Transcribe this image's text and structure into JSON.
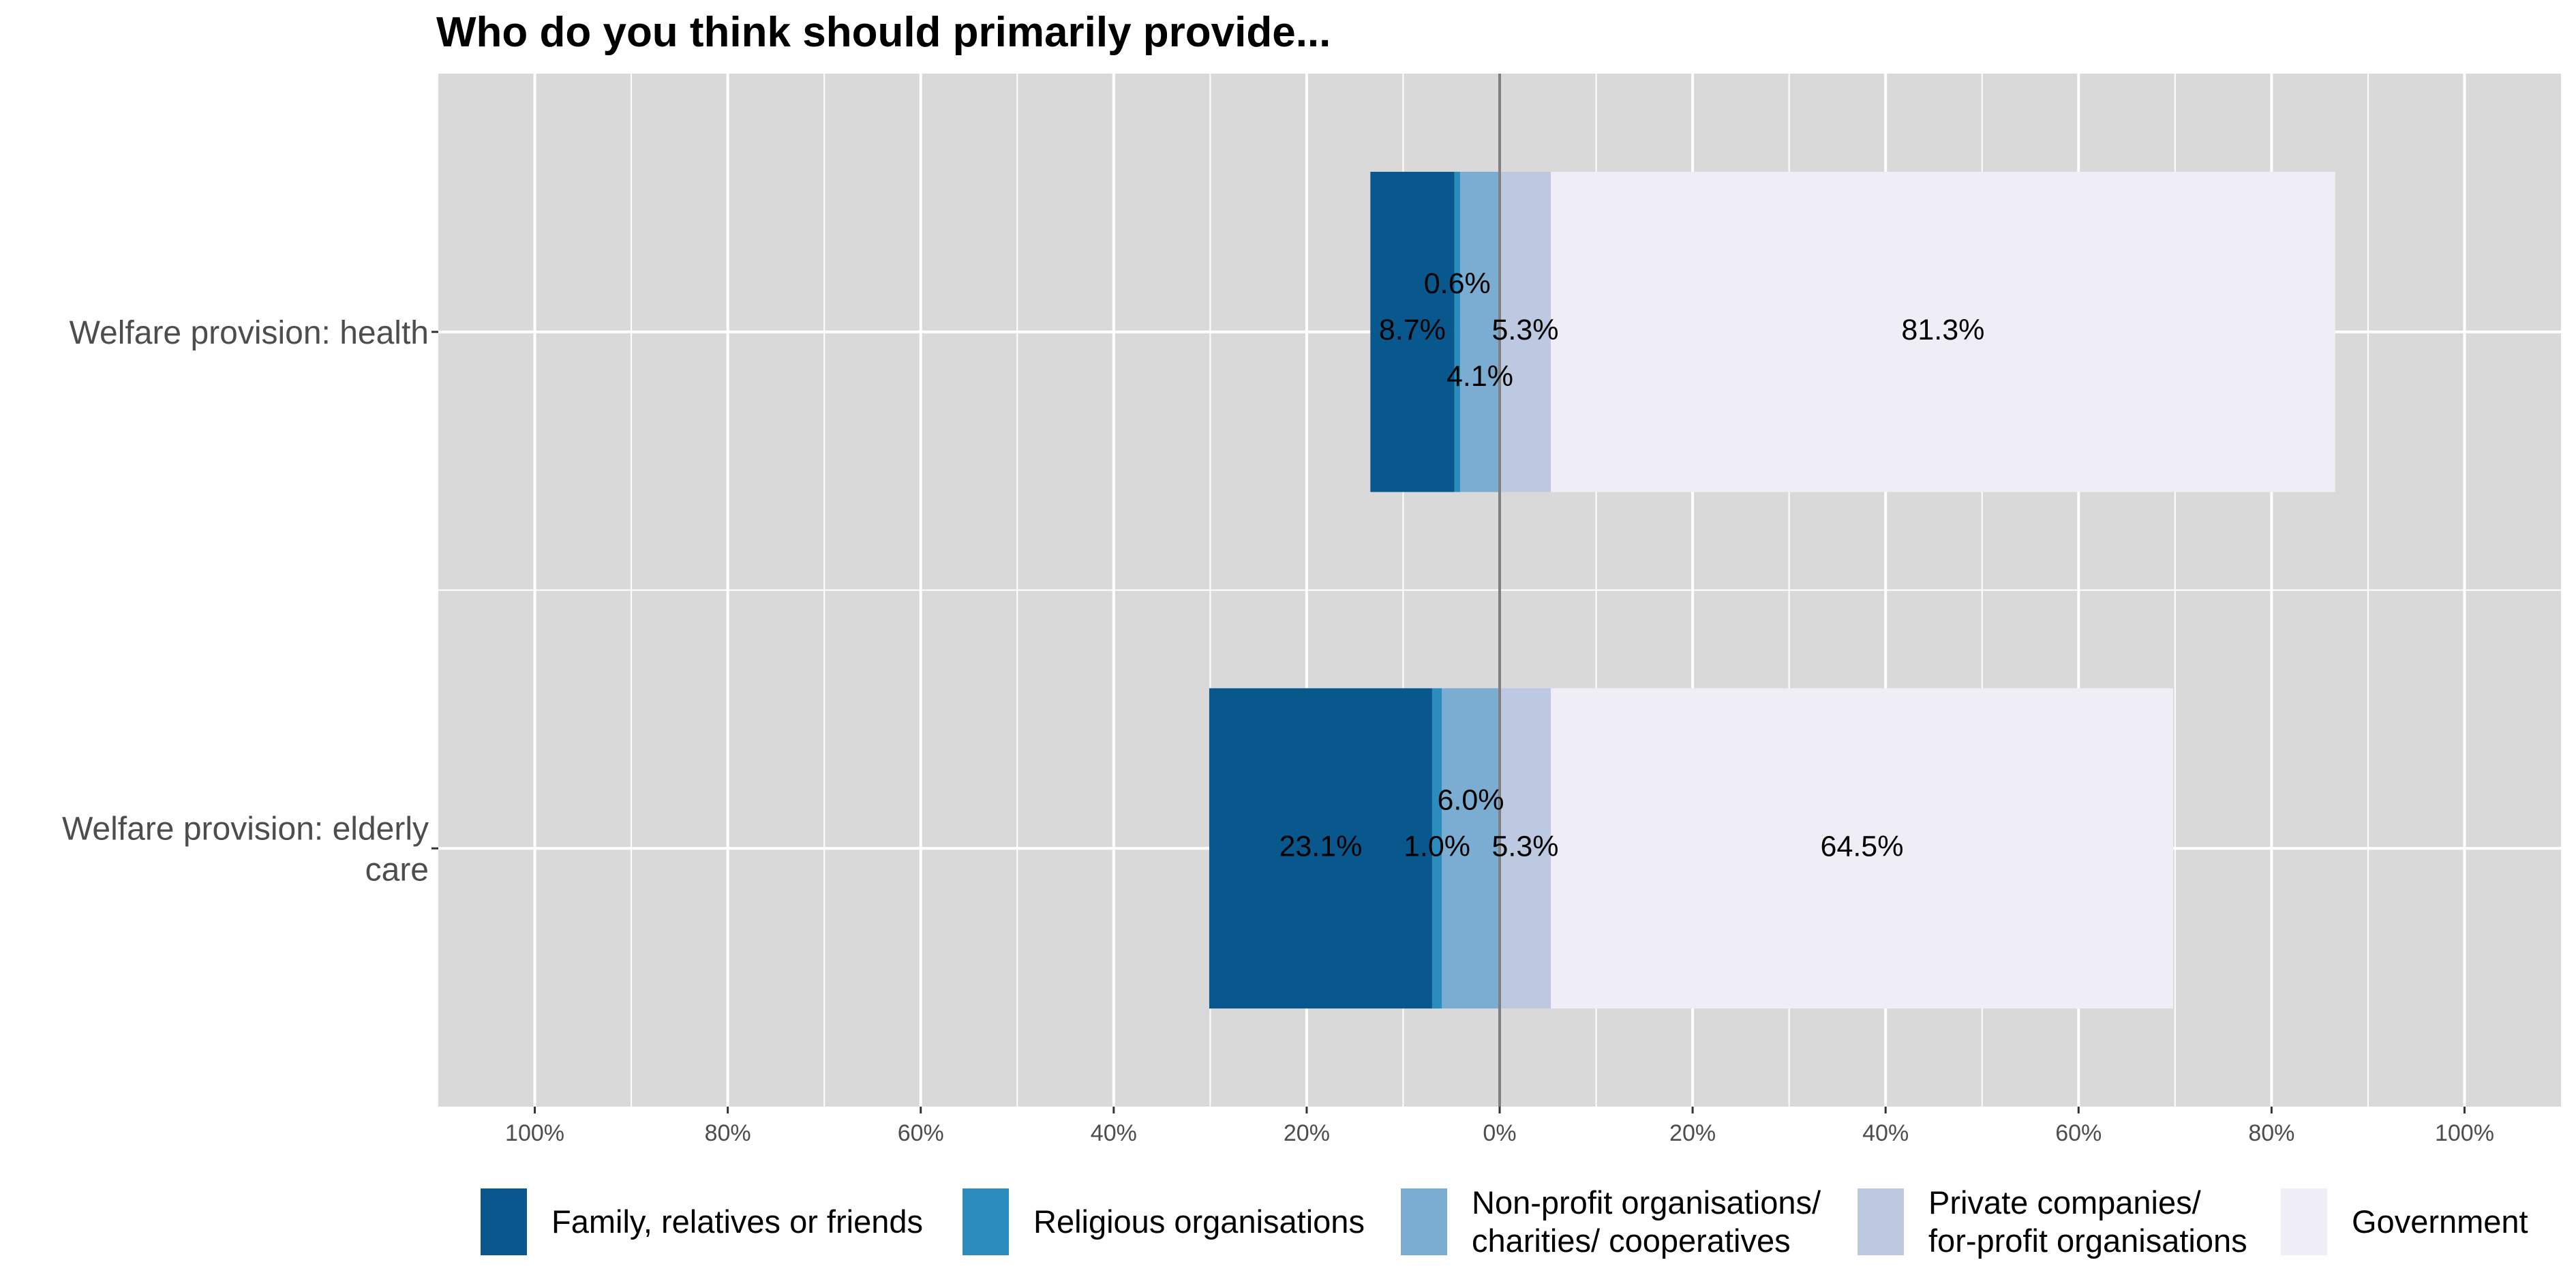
{
  "chart_data": {
    "type": "bar",
    "orientation": "horizontal",
    "stacking": "diverging",
    "title": "Who do you think should primarily provide...",
    "xlabel": "",
    "ylabel": "",
    "xlim": [
      -110,
      110
    ],
    "x_ticks": [
      -100,
      -80,
      -60,
      -40,
      -20,
      0,
      20,
      40,
      60,
      80,
      100
    ],
    "x_tick_labels": [
      "100%",
      "80%",
      "60%",
      "40%",
      "20%",
      "0%",
      "20%",
      "40%",
      "60%",
      "80%",
      "100%"
    ],
    "grid": true,
    "legend_position": "bottom",
    "categories": [
      "Welfare provision: health",
      "Welfare provision: elderly care"
    ],
    "category_label_lines": [
      [
        "Welfare provision: health"
      ],
      [
        "Welfare provision: elderly",
        "care"
      ]
    ],
    "series": [
      {
        "name": "Family, relatives or friends",
        "legend_lines": [
          "Family, relatives or friends"
        ],
        "color": "#08588e",
        "side": "negative",
        "values": [
          8.7,
          23.1
        ],
        "labels": [
          "8.7%",
          "23.1%"
        ]
      },
      {
        "name": "Religious organisations",
        "legend_lines": [
          "Religious organisations"
        ],
        "color": "#2b8cbe",
        "side": "negative",
        "values": [
          0.6,
          1.0
        ],
        "labels": [
          "0.6%",
          "1.0%"
        ]
      },
      {
        "name": "Non-profit organisations/ charities/ cooperatives",
        "legend_lines": [
          "Non-profit organisations/",
          "charities/ cooperatives"
        ],
        "color": "#7bacd2",
        "side": "negative",
        "values": [
          4.1,
          6.0
        ],
        "labels": [
          "4.1%",
          "6.0%"
        ]
      },
      {
        "name": "Private companies/ for-profit organisations",
        "legend_lines": [
          "Private companies/",
          "for-profit organisations"
        ],
        "color": "#bdc9e1",
        "side": "positive",
        "values": [
          5.3,
          5.3
        ],
        "labels": [
          "5.3%",
          "5.3%"
        ]
      },
      {
        "name": "Government",
        "legend_lines": [
          "Government"
        ],
        "color": "#efedf5",
        "side": "positive",
        "values": [
          81.3,
          64.5
        ],
        "labels": [
          "81.3%",
          "64.5%"
        ]
      }
    ],
    "colors": {
      "panel_background": "#d9d9d9",
      "gridline": "#ffffff",
      "zero_line": "#808080",
      "axis_text": "#4d4d4d"
    }
  }
}
